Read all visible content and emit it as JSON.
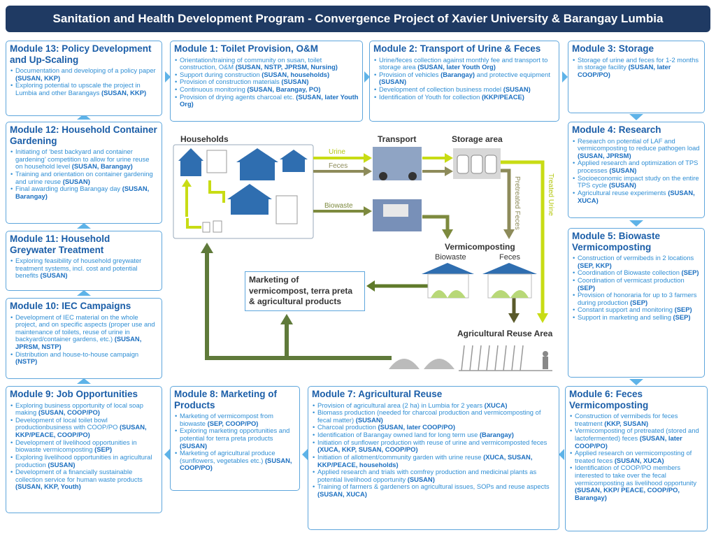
{
  "header": {
    "title": "Sanitation and Health Development Program - Convergence Project of Xavier University & Barangay Lumbia"
  },
  "modules": [
    {
      "title": "Module 13: Policy Development and Up-Scaling",
      "items": [
        [
          "Documentation and developing of a policy paper",
          "(SUSAN, KKP)"
        ],
        [
          "Exploring potential to upscale the project in Lumbia and other Barangays",
          "(SUSAN, KKP)"
        ]
      ]
    },
    {
      "title": "Module 1: Toilet Provision, O&M",
      "items": [
        [
          "Orientation/training of community on susan, toilet construction, O&M",
          "(SUSAN, NSTP, JPRSM, Nursing)"
        ],
        [
          "Support during construction",
          "(SUSAN, households)"
        ],
        [
          "Provision of construction materials",
          "(SUSAN)"
        ],
        [
          "Continuous monitoring",
          "(SUSAN, Barangay, PO)"
        ],
        [
          "Provision of drying agents charcoal etc.",
          "(SUSAN, later Youth Org)"
        ]
      ]
    },
    {
      "title": "Module 2: Transport of Urine & Feces",
      "items": [
        [
          "Urine/feces collection against monthly fee and transport to storage area",
          "(SUSAN, later Youth Org)"
        ],
        [
          "Provision of vehicles",
          "(Barangay)",
          "and protective equipment",
          "(SUSAN)"
        ],
        [
          "Development of collection business model",
          "(SUSAN)"
        ],
        [
          "Identification of Youth for collection",
          "(KKP/PEACE)"
        ]
      ]
    },
    {
      "title": "Module 3: Storage",
      "items": [
        [
          "Storage of urine and feces for 1-2 months in storage facility",
          "(SUSAN, later COOP/PO)"
        ]
      ]
    },
    {
      "title": "Module 12: Household Container Gardening",
      "items": [
        [
          "Initiating of ‘best backyard and container gardening’ competition to allow for urine reuse on household level",
          "(SUSAN, Barangay)"
        ],
        [
          "Training and orientation on container gardening and urine reuse",
          "(SUSAN)"
        ],
        [
          "Final awarding during Barangay day",
          "(SUSAN, Barangay)"
        ]
      ]
    },
    {
      "title": "Module 4: Research",
      "items": [
        [
          "Research on potential of LAF and vermicomposting to reduce pathogen load",
          "(SUSAN, JPRSM)"
        ],
        [
          "Applied research and optimization of TPS processes",
          "(SUSAN)"
        ],
        [
          "Socioeconomic impact study on the entire TPS cycle",
          "(SUSAN)"
        ],
        [
          "Agricultural reuse experiments",
          "(SUSAN, XUCA)"
        ]
      ]
    },
    {
      "title": "Module 11: Household Greywater Treatment",
      "items": [
        [
          "Exploring feasibility of household greywater treatment systems, incl. cost and potential benefits",
          "(SUSAN)"
        ]
      ]
    },
    {
      "title": "Module 5: Biowaste Vermicomposting",
      "items": [
        [
          "Construction of vermibeds in 2 locations",
          "(SEP, KKP)"
        ],
        [
          "Coordination of Biowaste collection",
          "(SEP)"
        ],
        [
          "Coordination of vermicast production",
          "(SEP)"
        ],
        [
          "Provision of honoraria for up to 3 farmers during production",
          "(SEP)"
        ],
        [
          "Constant support and monitoring",
          "(SEP)"
        ],
        [
          "Support in marketing and selling",
          "(SEP)"
        ]
      ]
    },
    {
      "title": "Module 10: IEC Campaigns",
      "items": [
        [
          "Development of IEC material on the whole project, and on specific aspects (proper use and maintenance of toilets, reuse of urine in backyard/container gardens, etc.)",
          "(SUSAN, JPRSM, NSTP)"
        ],
        [
          "Distribution and house-to-house campaign",
          "(NSTP)"
        ]
      ]
    },
    {
      "title": "Module 9: Job Opportunities",
      "items": [
        [
          "Exploring business opportunity of local soap making",
          "(SUSAN, COOP/PO)"
        ],
        [
          "Development of local toilet bowl productionbusiness with COOP/PO",
          "(SUSAN, KKP/PEACE, COOP/PO)"
        ],
        [
          "Development of livelihood opportunities in biowaste vermicomposting",
          "(SEP)"
        ],
        [
          "Exploring livelihood opportunities in agricultural production",
          "(SUSAN)"
        ],
        [
          "Development of a financially sustainable collection service for human waste products",
          "(SUSAN, KKP, Youth)"
        ]
      ]
    },
    {
      "title": "Module 8: Marketing of Products",
      "items": [
        [
          "Marketing of vermicompost from biowaste",
          "(SEP, COOP/PO)"
        ],
        [
          "Exploring marketing opportunities and potential for terra preta products",
          "(SUSAN)"
        ],
        [
          "Marketing of agricultural produce (sunflowers, vegetables etc.)",
          "(SUSAN, COOP/PO)"
        ]
      ]
    },
    {
      "title": "Module 7: Agricultural Reuse",
      "items": [
        [
          "Provision of agricultural area (2 ha) in Lumbia for 2 years",
          "(XUCA)"
        ],
        [
          "Biomass production (needed for charcoal production and vermicomposting of fecal matter)",
          "(SUSAN)"
        ],
        [
          "Charcoal production",
          "(SUSAN, later COOP/PO)"
        ],
        [
          "Identification of Barangay owned land for long term use",
          "(Barangay)"
        ],
        [
          "Initiation of sunflower production with reuse of urine and vermicomposted feces",
          "(XUCA, KKP, SUSAN, COOP/PO)"
        ],
        [
          "Initiation of allotment/community garden with urine reuse",
          "(XUCA, SUSAN, KKP/PEACE, households)"
        ],
        [
          "Applied research and trials with comfrey production and medicinal plants as potential livelihood opportunity",
          "(SUSAN)"
        ],
        [
          "Training of farmers & gardeners on agricultural issues, SOPs and reuse aspects",
          "(SUSAN, XUCA)"
        ]
      ]
    },
    {
      "title": "Module 6: Feces Vermicomposting",
      "items": [
        [
          "Construction of vermibeds for feces treatment",
          "(KKP, SUSAN)"
        ],
        [
          "Vermicomposting of pretreated (stored and lactofermented) feces",
          "(SUSAN, later COOP/PO)"
        ],
        [
          "Applied research on vermicomposting of treated feces",
          "(SUSAN, XUCA)"
        ],
        [
          "Identification of COOP/PO members interested to take over the fecal vermicomposting as livelihood opportunity",
          "(SUSAN, KKP/ PEACE, COOP/PO, Barangay)"
        ]
      ]
    }
  ],
  "diagram": {
    "households": "Households",
    "transport": "Transport",
    "storage": "Storage area",
    "urine": "Urine",
    "feces": "Feces",
    "biowaste": "Biowaste",
    "pretreated_feces": "Pretreated Feces",
    "treated_urine": "Treated Urine",
    "vermicomposting": "Vermicomposting",
    "vc_biowaste": "Biowaste",
    "vc_feces": "Feces",
    "marketing": "Marketing of vermicompost, terra preta & agricultural products",
    "agri_area": "Agricultural Reuse Area"
  }
}
